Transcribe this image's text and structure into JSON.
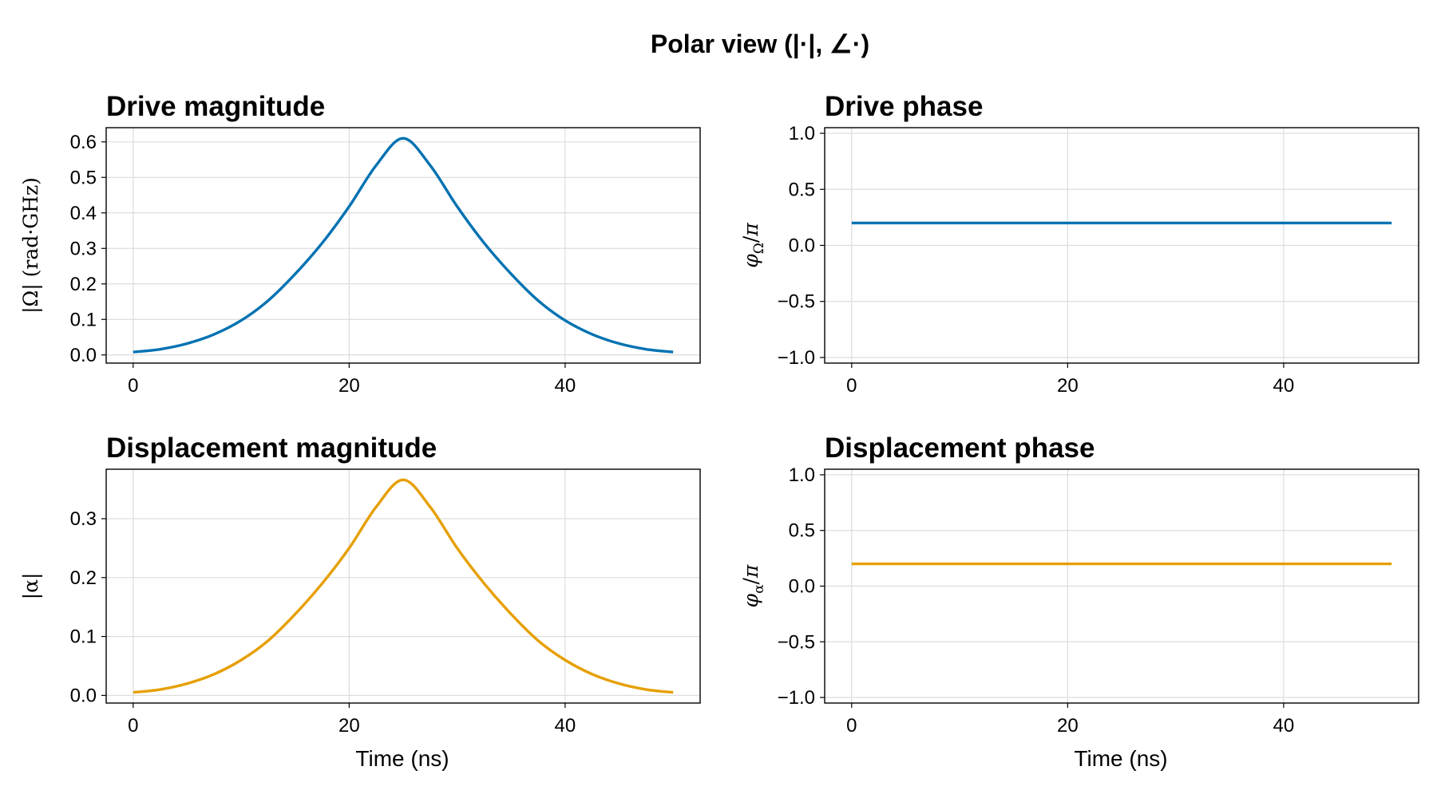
{
  "figure": {
    "title": "Polar view (|·|, ∠·)"
  },
  "colors": {
    "blue": "#0072b2",
    "orange": "#e69f00"
  },
  "chart_data": [
    {
      "type": "line",
      "title": "Drive magnitude",
      "xlabel": "",
      "ylabel": "|Ω| (rad·GHz)",
      "xlim": [
        -2.5,
        52.5
      ],
      "ylim": [
        -0.023,
        0.64
      ],
      "xticks": [
        0,
        20,
        40
      ],
      "yticks": [
        0.0,
        0.1,
        0.2,
        0.3,
        0.4,
        0.5,
        0.6
      ],
      "ytick_labels": [
        "0.0",
        "0.1",
        "0.2",
        "0.3",
        "0.4",
        "0.5",
        "0.6"
      ],
      "grid": true,
      "series": [
        {
          "color": "#0072b2",
          "x": [
            0,
            2.5,
            5,
            7.5,
            10,
            12.5,
            15,
            17.5,
            20,
            22.5,
            25,
            27.5,
            30,
            32.5,
            35,
            37.5,
            40,
            42.5,
            45,
            47.5,
            50
          ],
          "y": [
            0.008,
            0.016,
            0.032,
            0.058,
            0.097,
            0.153,
            0.228,
            0.315,
            0.418,
            0.534,
            0.61,
            0.534,
            0.418,
            0.315,
            0.228,
            0.153,
            0.097,
            0.058,
            0.032,
            0.016,
            0.008
          ]
        }
      ]
    },
    {
      "type": "line",
      "title": "Drive phase",
      "xlabel": "",
      "ylabel": "φΩ/π",
      "xlim": [
        -2.5,
        52.5
      ],
      "ylim": [
        -1.05,
        1.05
      ],
      "xticks": [
        0,
        20,
        40
      ],
      "yticks": [
        -1.0,
        -0.5,
        0.0,
        0.5,
        1.0
      ],
      "ytick_labels": [
        "−1.0",
        "−0.5",
        "0.0",
        "0.5",
        "1.0"
      ],
      "grid": true,
      "series": [
        {
          "color": "#0072b2",
          "x": [
            0,
            50
          ],
          "y": [
            0.2,
            0.2
          ]
        }
      ]
    },
    {
      "type": "line",
      "title": "Displacement magnitude",
      "xlabel": "Time (ns)",
      "ylabel": "|α|",
      "xlim": [
        -2.5,
        52.5
      ],
      "ylim": [
        -0.013,
        0.384
      ],
      "xticks": [
        0,
        20,
        40
      ],
      "yticks": [
        0.0,
        0.1,
        0.2,
        0.3
      ],
      "ytick_labels": [
        "0.0",
        "0.1",
        "0.2",
        "0.3"
      ],
      "grid": true,
      "series": [
        {
          "color": "#e69f00",
          "x": [
            0,
            2.5,
            5,
            7.5,
            10,
            12.5,
            15,
            17.5,
            20,
            22.5,
            25,
            27.5,
            30,
            32.5,
            35,
            37.5,
            40,
            42.5,
            45,
            47.5,
            50
          ],
          "y": [
            0.005,
            0.01,
            0.02,
            0.036,
            0.06,
            0.093,
            0.138,
            0.19,
            0.25,
            0.32,
            0.366,
            0.32,
            0.25,
            0.19,
            0.138,
            0.093,
            0.06,
            0.036,
            0.02,
            0.01,
            0.005
          ]
        }
      ]
    },
    {
      "type": "line",
      "title": "Displacement phase",
      "xlabel": "Time (ns)",
      "ylabel": "φα/π",
      "xlim": [
        -2.5,
        52.5
      ],
      "ylim": [
        -1.05,
        1.05
      ],
      "xticks": [
        0,
        20,
        40
      ],
      "yticks": [
        -1.0,
        -0.5,
        0.0,
        0.5,
        1.0
      ],
      "ytick_labels": [
        "−1.0",
        "−0.5",
        "0.0",
        "0.5",
        "1.0"
      ],
      "grid": true,
      "series": [
        {
          "color": "#e69f00",
          "x": [
            0,
            50
          ],
          "y": [
            0.2,
            0.2
          ]
        }
      ]
    }
  ]
}
